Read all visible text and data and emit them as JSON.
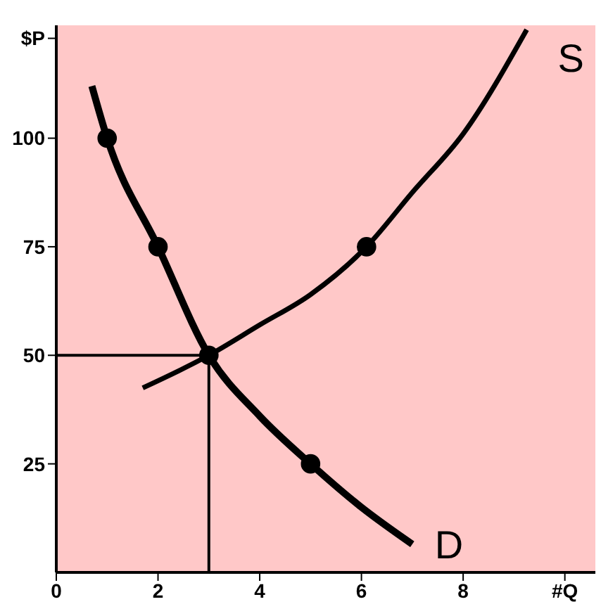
{
  "chart_data": {
    "type": "line",
    "xlim": [
      0,
      10.6
    ],
    "xticks": [
      0,
      2,
      4,
      6,
      8,
      {
        "value": 10,
        "label": "#Q"
      }
    ],
    "ylim": [
      0,
      126
    ],
    "yticks": [
      25,
      50,
      75,
      100,
      {
        "value": 123,
        "label": "$P"
      }
    ],
    "grid": false,
    "legend": false,
    "line_style": "solid",
    "series": [
      {
        "name": "D",
        "color": "#000000",
        "marker": "none",
        "x": [
          0.7,
          1,
          2,
          3,
          4,
          5,
          6,
          7
        ],
        "values": [
          112,
          100,
          75,
          50,
          36,
          25,
          15,
          6.5
        ]
      },
      {
        "name": "S",
        "color": "#000000",
        "marker": "none",
        "x": [
          1.7,
          3,
          4,
          5,
          6.1,
          7,
          8,
          9.25
        ],
        "values": [
          42.5,
          50,
          57,
          64,
          75,
          87.5,
          101,
          125
        ]
      },
      {
        "color": "#000000",
        "marker": "none",
        "x": [
          0,
          3,
          3
        ],
        "values": [
          50,
          50,
          0
        ]
      },
      {
        "type": "scatter",
        "color": "#000000",
        "marker": "circle",
        "x": [
          1,
          2,
          5,
          3,
          6.1
        ],
        "values": [
          100,
          75,
          25,
          50,
          75
        ]
      }
    ]
  }
}
